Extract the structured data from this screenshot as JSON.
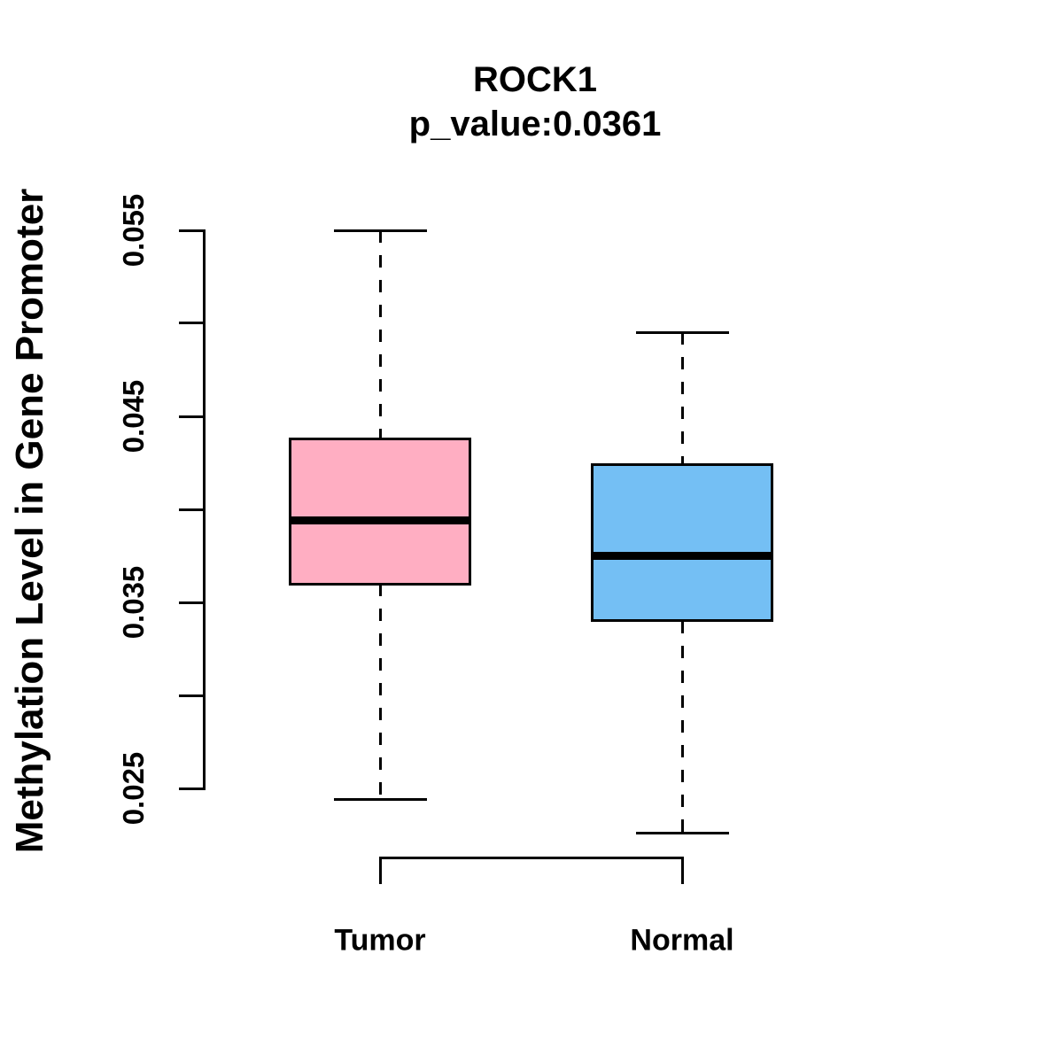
{
  "chart_data": {
    "type": "boxplot",
    "title": "ROCK1",
    "subtitle": "p_value:0.0361",
    "ylabel": "Methylation Level in Gene Promoter",
    "xlabel": "",
    "categories": [
      "Tumor",
      "Normal"
    ],
    "series": [
      {
        "name": "Tumor",
        "fill_color": "#FFAEC2",
        "stats": {
          "whisker_low": 0.0244,
          "q1": 0.036,
          "median": 0.0394,
          "q3": 0.0438,
          "whisker_high": 0.055
        }
      },
      {
        "name": "Normal",
        "fill_color": "#74BFF4",
        "stats": {
          "whisker_low": 0.0226,
          "q1": 0.034,
          "median": 0.0375,
          "q3": 0.0424,
          "whisker_high": 0.0495
        }
      }
    ],
    "ylim": [
      0.025,
      0.055
    ],
    "y_axis": {
      "ticks": [
        {
          "value": 0.025,
          "label": "0.025"
        },
        {
          "value": 0.03,
          "label": ""
        },
        {
          "value": 0.035,
          "label": "0.035"
        },
        {
          "value": 0.04,
          "label": ""
        },
        {
          "value": 0.045,
          "label": "0.045"
        },
        {
          "value": 0.05,
          "label": ""
        },
        {
          "value": 0.055,
          "label": "0.055"
        }
      ]
    },
    "grid": false,
    "legend": false,
    "colors": {
      "box_border": "#000000",
      "median_line": "#000000",
      "whisker": "#000000",
      "background": "#FFFFFF"
    }
  }
}
